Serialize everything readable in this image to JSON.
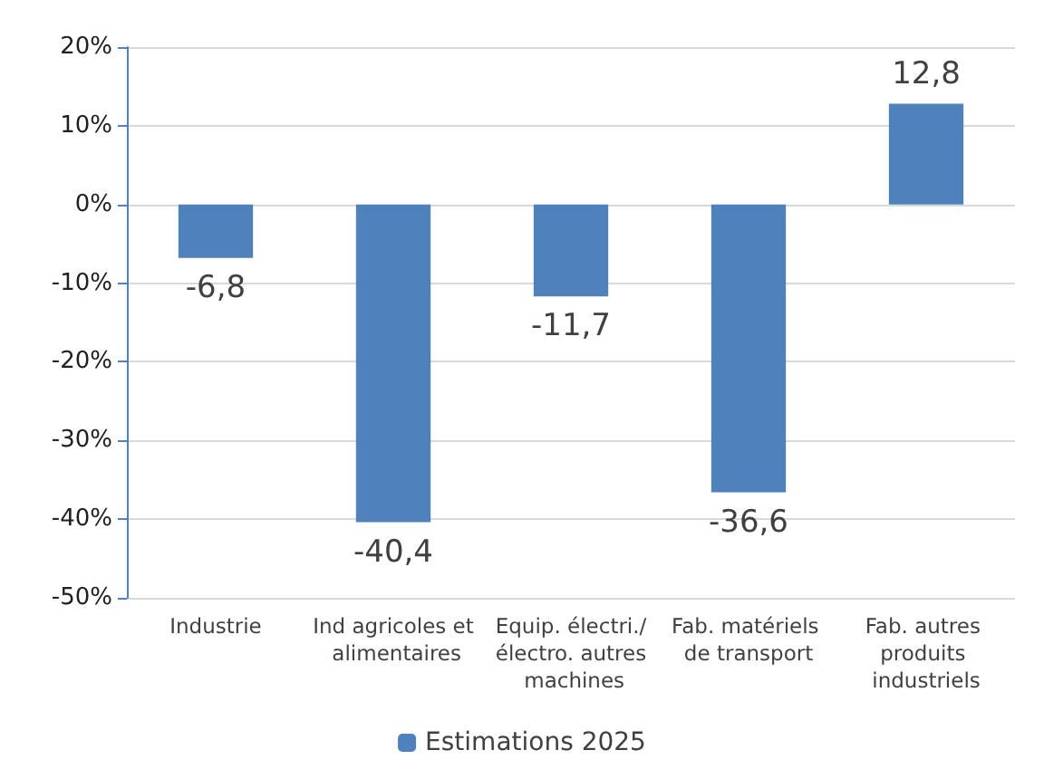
{
  "chart_data": {
    "type": "bar",
    "categories": [
      "Industrie",
      "Ind agricoles et alimentaires",
      "Equip. électri./électro. autres machines",
      "Fab. matériels de transport",
      "Fab. autres produits industriels"
    ],
    "series": [
      {
        "name": "Estimations 2025",
        "color": "#4f81bd",
        "values": [
          -6.8,
          -40.4,
          -11.7,
          -36.6,
          12.8
        ],
        "value_labels": [
          "-6,8",
          "-40,4",
          "-11,7",
          "-36,6",
          "12,8"
        ]
      }
    ],
    "ylim": [
      -50,
      20
    ],
    "yticks": [
      {
        "value": -50,
        "label": "-50%"
      },
      {
        "value": -40,
        "label": "-40%"
      },
      {
        "value": -30,
        "label": "-30%"
      },
      {
        "value": -20,
        "label": "-20%"
      },
      {
        "value": -10,
        "label": "-10%"
      },
      {
        "value": 0,
        "label": "0%"
      },
      {
        "value": 10,
        "label": "10%"
      },
      {
        "value": 20,
        "label": "20%"
      }
    ],
    "grid": "y",
    "legend": "bottom"
  }
}
